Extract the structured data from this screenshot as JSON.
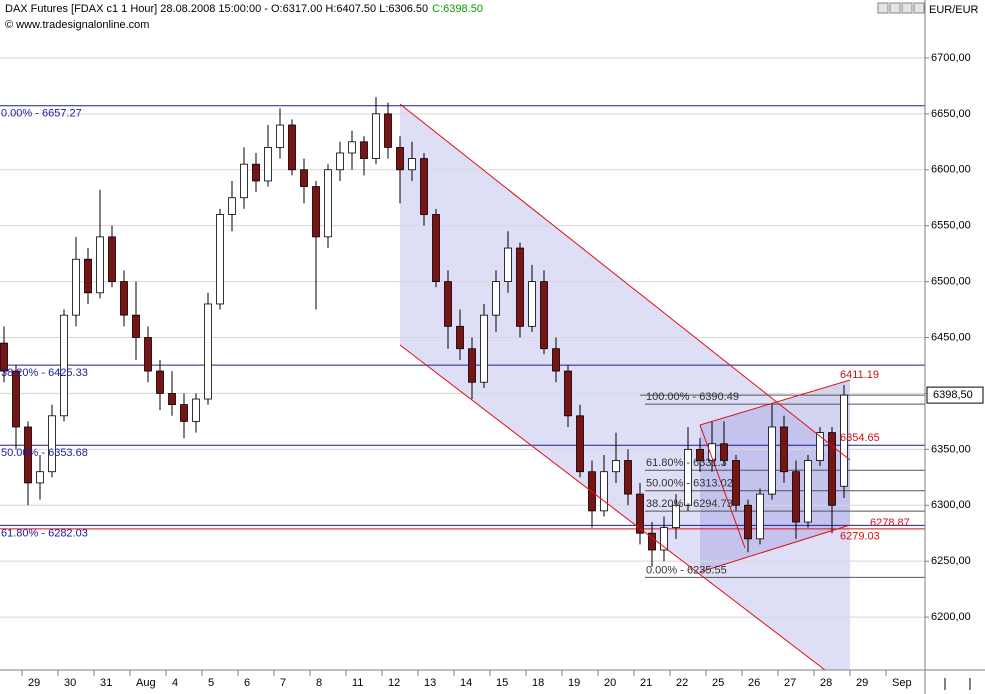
{
  "chart_data": {
    "type": "candlestick",
    "title": "DAX Futures [FDAX c1  1 Hour] 28.08.2008 15:00:00 - O:6317.00 H:6407.50 L:6306.50",
    "title_close": "C:6398.50",
    "subtitle": "© www.tradesignalonline.com",
    "currency": "EUR/EUR",
    "up_color": "#ffffff",
    "down_color": "#7a1414",
    "grid": true,
    "categories": [
      null,
      null,
      "29",
      null,
      null,
      "30",
      null,
      null,
      "31",
      null,
      null,
      "Aug",
      null,
      null,
      "4",
      null,
      null,
      "5",
      null,
      null,
      "6",
      null,
      null,
      "7",
      null,
      null,
      "8",
      null,
      null,
      "11",
      null,
      null,
      "12",
      null,
      null,
      "13",
      null,
      null,
      "14",
      null,
      null,
      "15",
      null,
      null,
      "18",
      null,
      null,
      "19",
      null,
      null,
      "20",
      null,
      null,
      "21",
      null,
      null,
      "22",
      null,
      null,
      "25",
      null,
      null,
      "26",
      null,
      null,
      "27",
      null,
      null,
      "28",
      null,
      null,
      "29",
      null,
      null,
      "Sep",
      null,
      null
    ],
    "open": [
      6445,
      6420,
      6370,
      6320,
      6330,
      6380,
      6470,
      6520,
      6490,
      6540,
      6500,
      6470,
      6450,
      6420,
      6400,
      6390,
      6375,
      6395,
      6480,
      6560,
      6575,
      6605,
      6590,
      6620,
      6640,
      6600,
      6585,
      6540,
      6600,
      6615,
      6625,
      6610,
      6650,
      6620,
      6600,
      6610,
      6560,
      6500,
      6460,
      6440,
      6410,
      6470,
      6500,
      6530,
      6460,
      6500,
      6440,
      6420,
      6380,
      6330,
      6295,
      6330,
      6340,
      6310,
      6275,
      6260,
      6280,
      6300,
      6350,
      6340,
      6355,
      6340,
      6300,
      6270,
      6310,
      6370,
      6330,
      6285,
      6340,
      6365,
      6317,
      null,
      null,
      null,
      null,
      null,
      null
    ],
    "high": [
      6460,
      6425,
      6375,
      6345,
      6390,
      6475,
      6540,
      6530,
      6582,
      6550,
      6510,
      6500,
      6460,
      6430,
      6420,
      6400,
      6400,
      6490,
      6565,
      6590,
      6620,
      6615,
      6640,
      6655,
      6645,
      6610,
      6590,
      6605,
      6625,
      6635,
      6630,
      6665,
      6660,
      6630,
      6625,
      6615,
      6565,
      6510,
      6475,
      6450,
      6480,
      6510,
      6545,
      6535,
      6515,
      6510,
      6450,
      6425,
      6390,
      6340,
      6345,
      6365,
      6350,
      6320,
      6285,
      6290,
      6310,
      6370,
      6360,
      6375,
      6375,
      6345,
      6305,
      6315,
      6390,
      6380,
      6340,
      6345,
      6370,
      6370,
      6407.5,
      null,
      null,
      null,
      null,
      null,
      null
    ],
    "low": [
      6410,
      6350,
      6300,
      6305,
      6325,
      6375,
      6460,
      6480,
      6485,
      6495,
      6460,
      6430,
      6410,
      6385,
      6380,
      6360,
      6365,
      6390,
      6475,
      6545,
      6565,
      6580,
      6585,
      6610,
      6595,
      6570,
      6475,
      6530,
      6590,
      6600,
      6595,
      6605,
      6610,
      6570,
      6590,
      6550,
      6495,
      6440,
      6430,
      6395,
      6405,
      6455,
      6490,
      6450,
      6455,
      6435,
      6410,
      6370,
      6325,
      6280,
      6290,
      6320,
      6300,
      6265,
      6245,
      6250,
      6270,
      6295,
      6330,
      6330,
      6335,
      6295,
      6258,
      6265,
      6305,
      6320,
      6270,
      6280,
      6335,
      6275,
      6306.5,
      null,
      null,
      null,
      null,
      null,
      null
    ],
    "close": [
      6420,
      6370,
      6320,
      6330,
      6380,
      6470,
      6520,
      6490,
      6540,
      6500,
      6470,
      6450,
      6420,
      6400,
      6390,
      6375,
      6395,
      6480,
      6560,
      6575,
      6605,
      6590,
      6620,
      6640,
      6600,
      6585,
      6540,
      6600,
      6615,
      6625,
      6610,
      6650,
      6620,
      6600,
      6610,
      6560,
      6500,
      6460,
      6440,
      6410,
      6470,
      6500,
      6530,
      6460,
      6500,
      6440,
      6420,
      6380,
      6330,
      6295,
      6330,
      6340,
      6310,
      6275,
      6260,
      6280,
      6300,
      6350,
      6340,
      6355,
      6340,
      6300,
      6270,
      6310,
      6370,
      6330,
      6285,
      6340,
      6365,
      6300,
      6398.5,
      null,
      null,
      null,
      null,
      null,
      null
    ],
    "ylim": [
      6152.7,
      6751.8
    ],
    "yticks": [
      {
        "value": 6200,
        "label": "6200,00"
      },
      {
        "value": 6250,
        "label": "6250,00"
      },
      {
        "value": 6300,
        "label": "6300,00"
      },
      {
        "value": 6350,
        "label": "6350,00"
      },
      {
        "value": 6400,
        "label": "6400,00"
      },
      {
        "value": 6450,
        "label": "6450,00"
      },
      {
        "value": 6500,
        "label": "6500,00"
      },
      {
        "value": 6550,
        "label": "6550,00"
      },
      {
        "value": 6600,
        "label": "6600,00"
      },
      {
        "value": 6650,
        "label": "6650,00"
      },
      {
        "value": 6700,
        "label": "6700,00"
      }
    ],
    "fib_levels": [
      {
        "value": 6657.27,
        "label": "0.00% - 6657.27"
      },
      {
        "value": 6425.33,
        "label": "38.20% - 6425.33"
      },
      {
        "value": 6353.68,
        "label": "50.00% - 6353.68"
      },
      {
        "value": 6282.03,
        "label": "61.80% - 6282.03"
      }
    ],
    "fib_levels_2": [
      {
        "value": 6390.49,
        "label": "100.00% - 6390.49"
      },
      {
        "value": 6331.3,
        "label": "61.80% - 6331.3"
      },
      {
        "value": 6313.02,
        "label": "50.00% - 6313.02"
      },
      {
        "value": 6294.73,
        "label": "38.20% - 6294.73"
      },
      {
        "value": 6235.55,
        "label": "0.00% - 6235.55"
      }
    ],
    "price_labels": [
      {
        "value": 6411.19,
        "label": "6411.19"
      },
      {
        "value": 6354.65,
        "label": "6354.65"
      },
      {
        "value": 6278.87,
        "label": "6278.87"
      },
      {
        "value": 6279.03,
        "label": "6279.03"
      }
    ],
    "last_price": {
      "value": 6398.5,
      "label": "6398,50"
    }
  }
}
